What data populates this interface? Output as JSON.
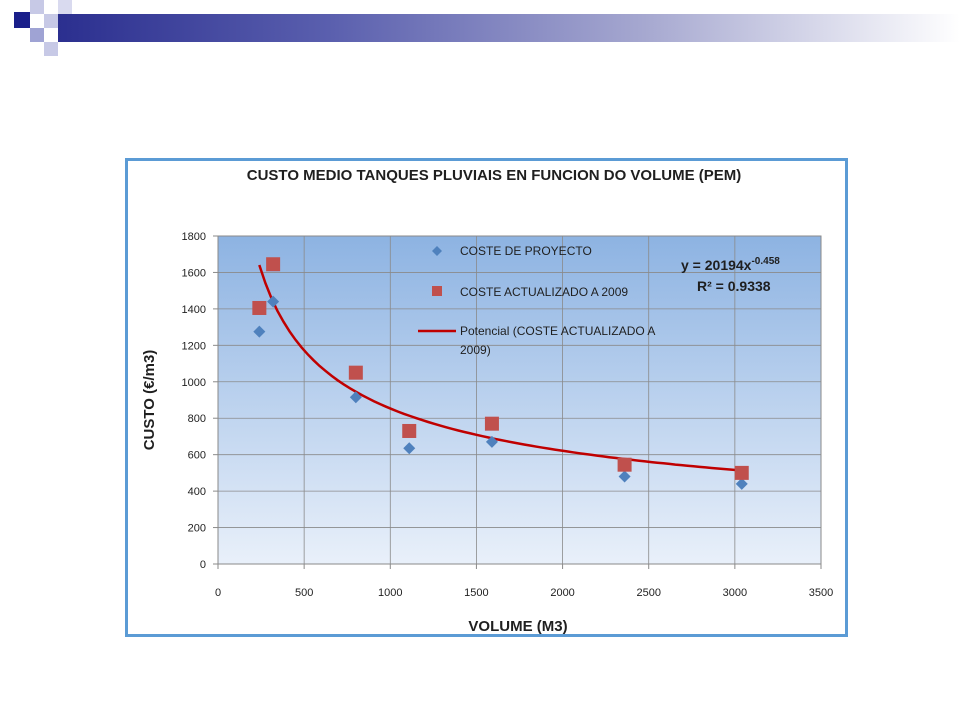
{
  "colors": {
    "header_dark": "#1a1f8a",
    "header_mid": "#5a5fae",
    "header_light": "#c7c9e6",
    "frame": "#5b9bd5",
    "series_project": "#4f81bd",
    "series_updated": "#c0504d",
    "trend": "#c00000"
  },
  "chart_data": {
    "type": "scatter",
    "title": "CUSTO MEDIO TANQUES PLUVIAIS EN FUNCION DO VOLUME (PEM)",
    "xlabel": "VOLUME  (M3)",
    "ylabel": "CUSTO  (€/m3)",
    "xlim": [
      0,
      3500
    ],
    "ylim": [
      0,
      1800
    ],
    "x_ticks": [
      "0",
      "500",
      "1000",
      "1500",
      "2000",
      "2500",
      "3000",
      "3500"
    ],
    "y_ticks": [
      "0",
      "200",
      "400",
      "600",
      "800",
      "1000",
      "1200",
      "1400",
      "1600",
      "1800"
    ],
    "grid": true,
    "legend_position": "top-center",
    "series": [
      {
        "name": "COSTE DE PROYECTO",
        "marker": "diamond",
        "points": [
          [
            240,
            1275
          ],
          [
            320,
            1440
          ],
          [
            800,
            915
          ],
          [
            1110,
            635
          ],
          [
            1590,
            670
          ],
          [
            2360,
            480
          ],
          [
            3040,
            440
          ]
        ]
      },
      {
        "name": "COSTE ACTUALIZADO A 2009",
        "marker": "square",
        "points": [
          [
            240,
            1405
          ],
          [
            320,
            1645
          ],
          [
            800,
            1050
          ],
          [
            1110,
            730
          ],
          [
            1590,
            770
          ],
          [
            2360,
            545
          ],
          [
            3040,
            500
          ]
        ]
      }
    ],
    "trendline": {
      "name": "Potencial (COSTE ACTUALIZADO A 2009)",
      "coefficient": 20194,
      "exponent": -0.458,
      "x_range": [
        240,
        3040
      ]
    },
    "equation": {
      "line1": "y = 20194x",
      "line1_sup": "-0.458",
      "line2": "R² = 0.9338"
    }
  }
}
